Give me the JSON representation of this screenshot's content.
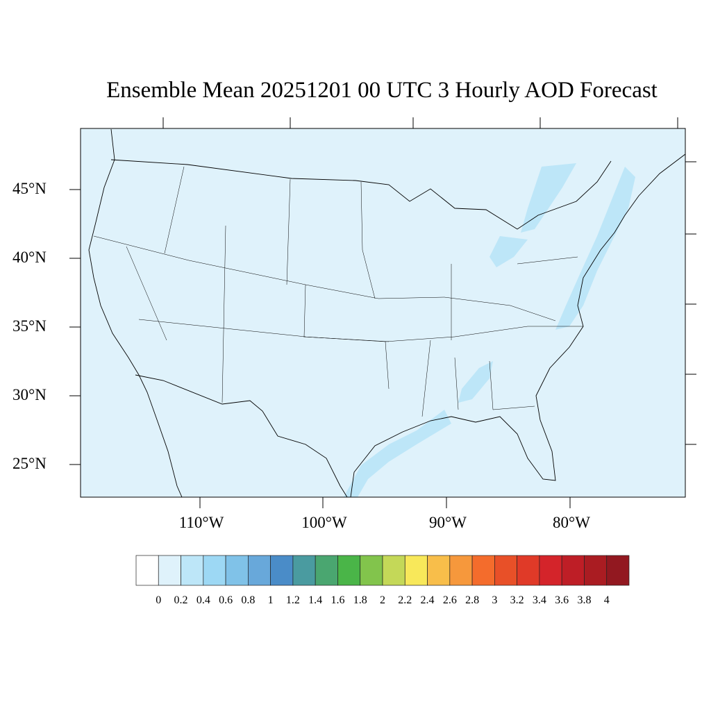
{
  "title": "Ensemble Mean 20251201 00 UTC 3 Hourly AOD Forecast",
  "map": {
    "background_color": "#dff2fb",
    "lat_labels": [
      "45°N",
      "40°N",
      "35°N",
      "30°N",
      "25°N"
    ],
    "lon_labels": [
      "110°W",
      "100°W",
      "90°W",
      "80°W"
    ]
  },
  "colorbar": {
    "labels": [
      "0",
      "0.2",
      "0.4",
      "0.6",
      "0.8",
      "1",
      "1.2",
      "1.4",
      "1.6",
      "1.8",
      "2",
      "2.2",
      "2.4",
      "2.6",
      "2.8",
      "3",
      "3.2",
      "3.4",
      "3.6",
      "3.8",
      "4"
    ],
    "colors": [
      "#ffffff",
      "#dff2fb",
      "#bde6f8",
      "#9dd8f4",
      "#80c2e8",
      "#68a8da",
      "#4a8cc8",
      "#4a9ba0",
      "#4aa670",
      "#4ab548",
      "#82c44c",
      "#c4d858",
      "#f8e85a",
      "#f8be4a",
      "#f6983c",
      "#f46c2c",
      "#e85028",
      "#e03a28",
      "#d4242a",
      "#be1e26",
      "#aa1c22",
      "#921820"
    ]
  }
}
